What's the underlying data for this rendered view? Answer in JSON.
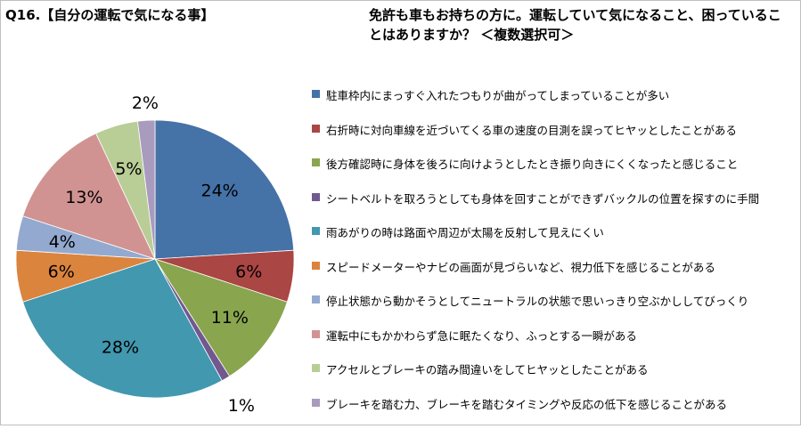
{
  "header": {
    "question": "Q16.【自分の運転で気になる事】",
    "description": "免許も車もお持ちの方に。運転していて気になること、困っていることはありますか？ ＜複数選択可＞"
  },
  "chart_data": {
    "type": "pie",
    "title": "",
    "categories": [
      "駐車枠内にまっすぐ入れたつもりが曲がってしまっていることが多い",
      "右折時に対向車線を近づいてくる車の速度の目測を誤ってヒヤッとしたことがある",
      "後方確認時に身体を後ろに向けようとしたとき振り向きにくくなったと感じること",
      "シートベルトを取ろうとしても身体を回すことができずバックルの位置を探すのに手間",
      "雨あがりの時は路面や周辺が太陽を反射して見えにくい",
      "スピードメーターやナビの画面が見づらいなど、視力低下を感じることがある",
      "停止状態から動かそうとしてニュートラルの状態で思いっきり空ぶかししてびっくり",
      "運転中にもかかわらず急に眠たくなり、ふっとする一瞬がある",
      "アクセルとブレーキの踏み間違いをしてヒヤッとしたことがある",
      "ブレーキを踏む力、ブレーキを踏むタイミングや反応の低下を感じることがある"
    ],
    "values": [
      24,
      6,
      11,
      1,
      28,
      6,
      4,
      13,
      5,
      2
    ],
    "labels": [
      "24%",
      "6%",
      "11%",
      "1%",
      "28%",
      "6%",
      "4%",
      "13%",
      "5%",
      "2%"
    ],
    "colors": [
      "#4572A7",
      "#AA4643",
      "#89A54E",
      "#71588F",
      "#4198AF",
      "#DB843D",
      "#93A9CF",
      "#D19392",
      "#B9CD96",
      "#A99BBD"
    ],
    "legend_position": "right"
  }
}
